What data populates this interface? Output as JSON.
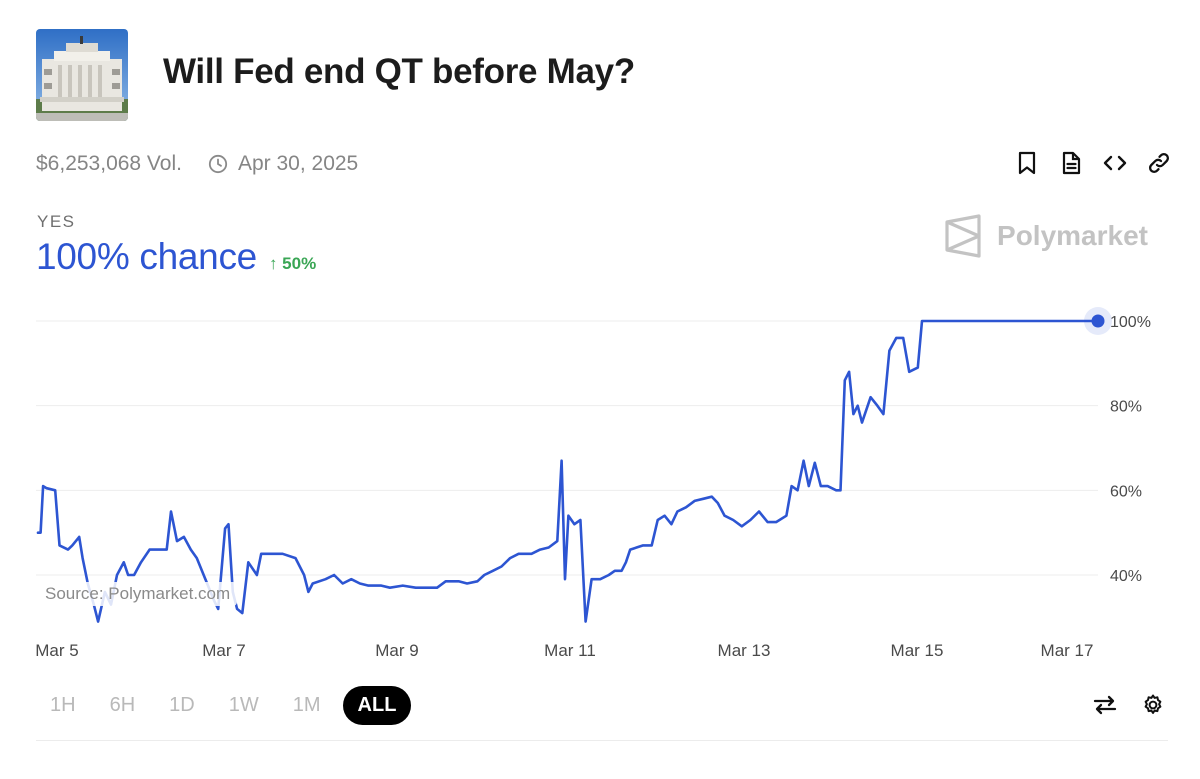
{
  "market": {
    "title": "Will Fed end QT before May?",
    "volume": "$6,253,068 Vol.",
    "end_date": "Apr 30, 2025",
    "thumbnail_icon": "federal-reserve-building-image"
  },
  "actions": [
    {
      "name": "bookmark-icon"
    },
    {
      "name": "document-icon"
    },
    {
      "name": "embed-code-icon"
    },
    {
      "name": "link-icon"
    }
  ],
  "outcome": {
    "label": "YES",
    "chance": "100% chance",
    "delta": "↑ 50%",
    "color": "#2d55d2",
    "delta_color": "#3aa655"
  },
  "brand": {
    "name": "Polymarket"
  },
  "source_label": "Source: Polymarket.com",
  "ranges": [
    "1H",
    "6H",
    "1D",
    "1W",
    "1M",
    "ALL"
  ],
  "active_range": "ALL",
  "tools": [
    {
      "name": "swap-arrows-icon"
    },
    {
      "name": "settings-gear-icon"
    }
  ],
  "chart_data": {
    "type": "line",
    "x_tick_labels": [
      "Mar 5",
      "Mar 7",
      "Mar 9",
      "Mar 11",
      "Mar 13",
      "Mar 15",
      "Mar 17"
    ],
    "y_tick_labels": [
      "100%",
      "80%",
      "60%",
      "40%"
    ],
    "y_ticks": [
      100,
      80,
      60,
      40
    ],
    "ylim": [
      28,
      102
    ],
    "xlim": [
      5.0,
      17.35
    ],
    "grid": true,
    "series": [
      {
        "color": "#2d55d2",
        "points": [
          [
            5.0,
            50
          ],
          [
            5.03,
            50
          ],
          [
            5.06,
            61
          ],
          [
            5.1,
            60.5
          ],
          [
            5.2,
            60
          ],
          [
            5.25,
            47
          ],
          [
            5.35,
            46
          ],
          [
            5.4,
            47
          ],
          [
            5.48,
            49
          ],
          [
            5.52,
            44
          ],
          [
            5.58,
            38
          ],
          [
            5.65,
            33
          ],
          [
            5.7,
            29
          ],
          [
            5.78,
            36
          ],
          [
            5.85,
            33
          ],
          [
            5.92,
            40
          ],
          [
            6.0,
            43
          ],
          [
            6.05,
            40
          ],
          [
            6.12,
            40
          ],
          [
            6.2,
            43
          ],
          [
            6.3,
            46
          ],
          [
            6.45,
            46
          ],
          [
            6.5,
            46
          ],
          [
            6.55,
            55
          ],
          [
            6.62,
            48
          ],
          [
            6.7,
            49
          ],
          [
            6.78,
            46
          ],
          [
            6.85,
            44
          ],
          [
            6.95,
            39
          ],
          [
            7.05,
            34
          ],
          [
            7.1,
            32
          ],
          [
            7.18,
            51
          ],
          [
            7.22,
            52
          ],
          [
            7.27,
            36
          ],
          [
            7.32,
            32
          ],
          [
            7.38,
            31
          ],
          [
            7.45,
            43
          ],
          [
            7.55,
            40
          ],
          [
            7.6,
            45
          ],
          [
            7.7,
            45
          ],
          [
            7.85,
            45
          ],
          [
            8.0,
            44
          ],
          [
            8.1,
            40
          ],
          [
            8.15,
            36
          ],
          [
            8.2,
            38
          ],
          [
            8.35,
            39
          ],
          [
            8.45,
            40
          ],
          [
            8.55,
            38
          ],
          [
            8.65,
            39
          ],
          [
            8.75,
            38
          ],
          [
            8.85,
            37.5
          ],
          [
            9.0,
            37.5
          ],
          [
            9.1,
            37
          ],
          [
            9.25,
            37.5
          ],
          [
            9.4,
            37
          ],
          [
            9.55,
            37
          ],
          [
            9.65,
            37
          ],
          [
            9.75,
            38.5
          ],
          [
            9.9,
            38.5
          ],
          [
            10.0,
            38
          ],
          [
            10.12,
            38.5
          ],
          [
            10.2,
            40
          ],
          [
            10.3,
            41
          ],
          [
            10.4,
            42
          ],
          [
            10.5,
            44
          ],
          [
            10.6,
            45
          ],
          [
            10.75,
            45
          ],
          [
            10.85,
            46
          ],
          [
            10.95,
            46.5
          ],
          [
            11.05,
            48
          ],
          [
            11.1,
            67
          ],
          [
            11.14,
            39
          ],
          [
            11.18,
            54
          ],
          [
            11.25,
            52
          ],
          [
            11.32,
            53
          ],
          [
            11.38,
            29
          ],
          [
            11.45,
            39
          ],
          [
            11.55,
            39
          ],
          [
            11.65,
            40
          ],
          [
            11.72,
            41
          ],
          [
            11.8,
            41
          ],
          [
            11.85,
            43
          ],
          [
            11.9,
            46
          ],
          [
            12.05,
            47
          ],
          [
            12.15,
            47
          ],
          [
            12.22,
            53
          ],
          [
            12.3,
            54
          ],
          [
            12.38,
            52
          ],
          [
            12.45,
            55
          ],
          [
            12.55,
            56
          ],
          [
            12.65,
            57.5
          ],
          [
            12.75,
            58
          ],
          [
            12.85,
            58.5
          ],
          [
            12.92,
            57
          ],
          [
            13.0,
            54
          ],
          [
            13.1,
            53
          ],
          [
            13.2,
            51.5
          ],
          [
            13.3,
            53
          ],
          [
            13.4,
            55
          ],
          [
            13.5,
            52.5
          ],
          [
            13.6,
            52.5
          ],
          [
            13.72,
            54
          ],
          [
            13.78,
            61
          ],
          [
            13.85,
            60
          ],
          [
            13.92,
            67
          ],
          [
            13.98,
            61
          ],
          [
            14.05,
            66.5
          ],
          [
            14.12,
            61
          ],
          [
            14.2,
            61
          ],
          [
            14.3,
            60
          ],
          [
            14.35,
            60
          ],
          [
            14.4,
            86
          ],
          [
            14.45,
            88
          ],
          [
            14.5,
            78
          ],
          [
            14.55,
            80
          ],
          [
            14.6,
            76
          ],
          [
            14.7,
            82
          ],
          [
            14.78,
            80
          ],
          [
            14.85,
            78
          ],
          [
            14.92,
            93
          ],
          [
            15.0,
            96
          ],
          [
            15.08,
            96
          ],
          [
            15.15,
            88
          ],
          [
            15.25,
            89
          ],
          [
            15.3,
            100
          ],
          [
            15.5,
            100
          ],
          [
            15.8,
            100
          ],
          [
            16.0,
            100
          ],
          [
            16.4,
            100
          ],
          [
            16.8,
            100
          ],
          [
            17.35,
            100
          ]
        ]
      }
    ]
  }
}
